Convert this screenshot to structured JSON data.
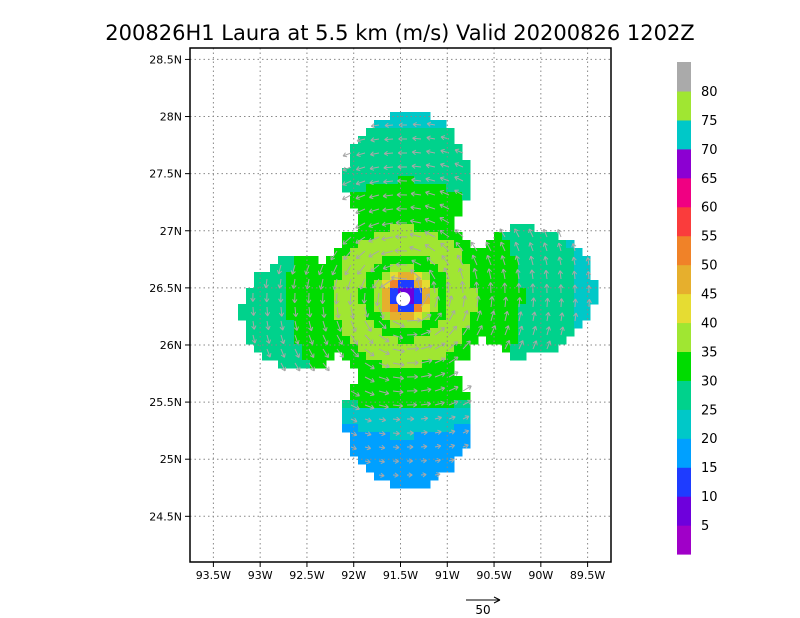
{
  "chart_data": {
    "type": "heatmap",
    "title": "200826H1 Laura at 5.5 km (m/s) Valid 20200826 1202Z",
    "xlim": [
      -93.75,
      -89.25
    ],
    "ylim": [
      24.1,
      28.6
    ],
    "x_ticks": [
      {
        "value": -93.5,
        "label": "93.5W"
      },
      {
        "value": -93.0,
        "label": "93W"
      },
      {
        "value": -92.5,
        "label": "92.5W"
      },
      {
        "value": -92.0,
        "label": "92W"
      },
      {
        "value": -91.5,
        "label": "91.5W"
      },
      {
        "value": -91.0,
        "label": "91W"
      },
      {
        "value": -90.5,
        "label": "90.5W"
      },
      {
        "value": -90.0,
        "label": "90W"
      },
      {
        "value": -89.5,
        "label": "89.5W"
      }
    ],
    "y_ticks": [
      {
        "value": 24.5,
        "label": "24.5N"
      },
      {
        "value": 25.0,
        "label": "25N"
      },
      {
        "value": 25.5,
        "label": "25.5N"
      },
      {
        "value": 26.0,
        "label": "26N"
      },
      {
        "value": 26.5,
        "label": "26.5N"
      },
      {
        "value": 27.0,
        "label": "27N"
      },
      {
        "value": 27.5,
        "label": "27.5N"
      },
      {
        "value": 28.0,
        "label": "28N"
      },
      {
        "value": 28.5,
        "label": "28.5N"
      }
    ],
    "grid": true,
    "center": {
      "lon": -91.45,
      "lat": 26.42
    },
    "colorbar": {
      "levels": [
        0,
        5,
        10,
        15,
        20,
        25,
        30,
        35,
        40,
        45,
        50,
        55,
        60,
        65,
        70,
        75,
        80,
        85
      ],
      "labels": [
        "5",
        "10",
        "15",
        "20",
        "25",
        "30",
        "35",
        "40",
        "45",
        "50",
        "55",
        "60",
        "65",
        "70",
        "75",
        "80"
      ],
      "colors": [
        "#a000c8",
        "#6e00dc",
        "#1e3cff",
        "#00a0ff",
        "#00c8c8",
        "#00d28c",
        "#00dc00",
        "#a0e632",
        "#e6dc32",
        "#e6af2d",
        "#f08228",
        "#fa3c3c",
        "#f00082",
        "#8c00d2",
        "#00c8c8",
        "#a0e632",
        "#aaaaaa"
      ]
    },
    "legend": "right",
    "vector_reference": {
      "value": 50,
      "label": "50"
    }
  }
}
